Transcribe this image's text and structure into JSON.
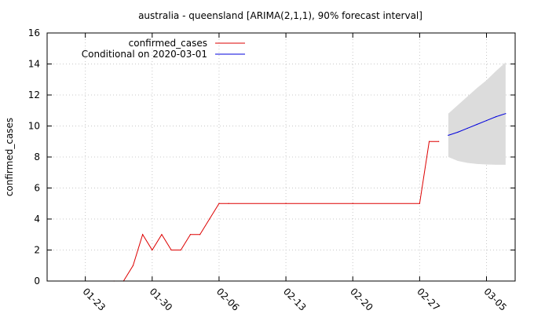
{
  "chart_data": {
    "type": "line",
    "title": "australia - queensland [ARIMA(2,1,1), 90% forecast interval]",
    "xlabel": "",
    "ylabel": "confirmed_cases",
    "ylim": [
      0,
      16
    ],
    "xlim": [
      "2020-01-19",
      "2020-03-08"
    ],
    "grid": true,
    "legend_position": "top-left",
    "x_ticks": [
      {
        "date": "2020-01-23",
        "label": "01-23"
      },
      {
        "date": "2020-01-30",
        "label": "01-30"
      },
      {
        "date": "2020-02-06",
        "label": "02-06"
      },
      {
        "date": "2020-02-13",
        "label": "02-13"
      },
      {
        "date": "2020-02-20",
        "label": "02-20"
      },
      {
        "date": "2020-02-27",
        "label": "02-27"
      },
      {
        "date": "2020-03-05",
        "label": "03-05"
      }
    ],
    "y_ticks": [
      0,
      2,
      4,
      6,
      8,
      10,
      12,
      14,
      16
    ],
    "series": [
      {
        "name": "confirmed_cases",
        "color": "#dd0000",
        "points": [
          [
            "2020-01-26",
            0
          ],
          [
            "2020-01-27",
            0
          ],
          [
            "2020-01-28",
            1
          ],
          [
            "2020-01-29",
            3
          ],
          [
            "2020-01-30",
            2
          ],
          [
            "2020-01-31",
            3
          ],
          [
            "2020-02-01",
            2
          ],
          [
            "2020-02-02",
            2
          ],
          [
            "2020-02-03",
            3
          ],
          [
            "2020-02-04",
            3
          ],
          [
            "2020-02-05",
            4
          ],
          [
            "2020-02-06",
            5
          ],
          [
            "2020-02-07",
            5
          ],
          [
            "2020-02-13",
            5
          ],
          [
            "2020-02-20",
            5
          ],
          [
            "2020-02-27",
            5
          ],
          [
            "2020-02-28",
            9
          ],
          [
            "2020-02-29",
            9
          ]
        ]
      },
      {
        "name": "Conditional on 2020-03-01",
        "color": "#0000dd",
        "points": [
          [
            "2020-03-01",
            9.4
          ],
          [
            "2020-03-02",
            9.6
          ],
          [
            "2020-03-03",
            9.85
          ],
          [
            "2020-03-04",
            10.1
          ],
          [
            "2020-03-05",
            10.35
          ],
          [
            "2020-03-06",
            10.6
          ],
          [
            "2020-03-07",
            10.8
          ]
        ]
      }
    ],
    "forecast_interval": {
      "color": "#dcdcdc",
      "upper": [
        [
          "2020-03-01",
          10.8
        ],
        [
          "2020-03-02",
          11.35
        ],
        [
          "2020-03-03",
          11.9
        ],
        [
          "2020-03-04",
          12.45
        ],
        [
          "2020-03-05",
          12.95
        ],
        [
          "2020-03-06",
          13.55
        ],
        [
          "2020-03-07",
          14.1
        ]
      ],
      "lower": [
        [
          "2020-03-01",
          8.0
        ],
        [
          "2020-03-02",
          7.75
        ],
        [
          "2020-03-03",
          7.62
        ],
        [
          "2020-03-04",
          7.55
        ],
        [
          "2020-03-05",
          7.52
        ],
        [
          "2020-03-06",
          7.5
        ],
        [
          "2020-03-07",
          7.5
        ]
      ]
    }
  }
}
